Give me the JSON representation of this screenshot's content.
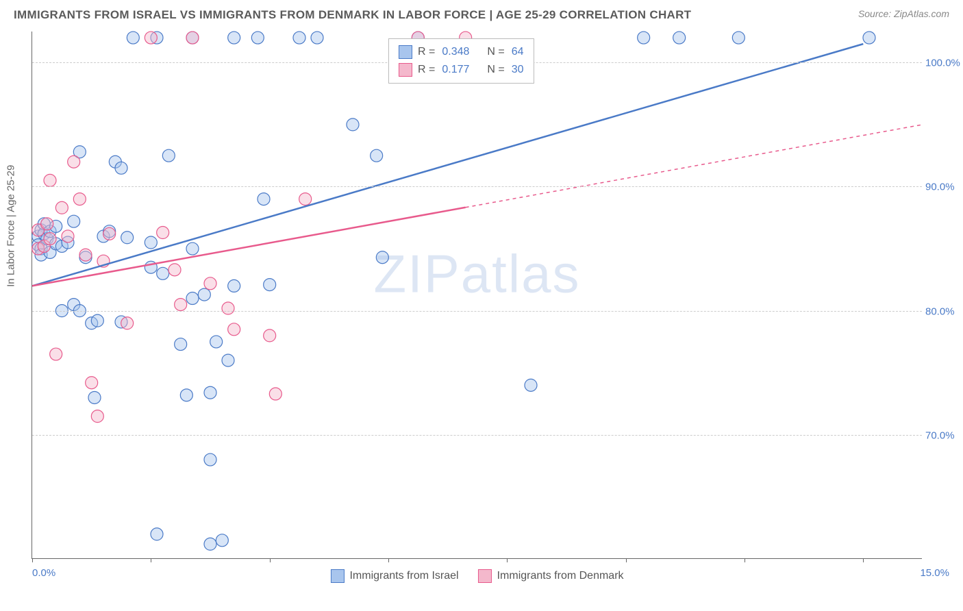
{
  "title": "IMMIGRANTS FROM ISRAEL VS IMMIGRANTS FROM DENMARK IN LABOR FORCE | AGE 25-29 CORRELATION CHART",
  "source": "Source: ZipAtlas.com",
  "watermark": {
    "text1": "ZIP",
    "text2": "atlas"
  },
  "chart": {
    "type": "scatter",
    "ylabel": "In Labor Force | Age 25-29",
    "xlim": [
      0,
      15
    ],
    "ylim": [
      60,
      102.5
    ],
    "yticks": [
      {
        "v": 70,
        "label": "70.0%"
      },
      {
        "v": 80,
        "label": "80.0%"
      },
      {
        "v": 90,
        "label": "90.0%"
      },
      {
        "v": 100,
        "label": "100.0%"
      }
    ],
    "xticks_labels": {
      "left": "0.0%",
      "right": "15.0%"
    },
    "xtick_marks": [
      0,
      2,
      4,
      6,
      8,
      10,
      12,
      14
    ],
    "grid_color": "#cccccc",
    "axis_color": "#666666",
    "background_color": "#ffffff",
    "point_radius": 9,
    "series": [
      {
        "name": "Immigrants from Israel",
        "color_stroke": "#4a7ac7",
        "color_fill": "#a8c5ed",
        "R": "0.348",
        "N": "64",
        "trend": {
          "x1": 0,
          "y1": 82,
          "x2": 14,
          "y2": 101.5,
          "dashed_from_x": null
        },
        "points": [
          [
            0.1,
            86
          ],
          [
            0.1,
            85.3
          ],
          [
            0.15,
            86.5
          ],
          [
            0.15,
            85
          ],
          [
            0.15,
            84.5
          ],
          [
            0.2,
            86.2
          ],
          [
            0.2,
            87
          ],
          [
            0.25,
            85.8
          ],
          [
            0.3,
            84.7
          ],
          [
            0.3,
            86.4
          ],
          [
            0.4,
            85.4
          ],
          [
            0.4,
            86.8
          ],
          [
            0.5,
            85.2
          ],
          [
            0.5,
            80
          ],
          [
            0.6,
            85.5
          ],
          [
            0.7,
            87.2
          ],
          [
            0.7,
            80.5
          ],
          [
            0.8,
            80
          ],
          [
            0.8,
            92.8
          ],
          [
            0.9,
            84.3
          ],
          [
            1.0,
            79
          ],
          [
            1.05,
            73
          ],
          [
            1.1,
            79.2
          ],
          [
            1.2,
            86
          ],
          [
            1.3,
            86.4
          ],
          [
            1.4,
            92
          ],
          [
            1.5,
            91.5
          ],
          [
            1.5,
            79.1
          ],
          [
            1.6,
            85.9
          ],
          [
            1.7,
            102
          ],
          [
            2.0,
            83.5
          ],
          [
            2.0,
            85.5
          ],
          [
            2.1,
            62
          ],
          [
            2.1,
            102
          ],
          [
            2.2,
            83
          ],
          [
            2.3,
            92.5
          ],
          [
            2.5,
            77.3
          ],
          [
            2.6,
            73.2
          ],
          [
            2.7,
            81
          ],
          [
            2.7,
            85
          ],
          [
            2.7,
            102
          ],
          [
            2.9,
            81.3
          ],
          [
            3.0,
            68
          ],
          [
            3.0,
            61.2
          ],
          [
            3.0,
            73.4
          ],
          [
            3.1,
            77.5
          ],
          [
            3.2,
            61.5
          ],
          [
            3.3,
            76
          ],
          [
            3.4,
            82
          ],
          [
            3.4,
            102
          ],
          [
            3.8,
            102
          ],
          [
            3.9,
            89
          ],
          [
            4.0,
            82.1
          ],
          [
            4.5,
            102
          ],
          [
            4.8,
            102
          ],
          [
            5.4,
            95
          ],
          [
            5.8,
            92.5
          ],
          [
            5.9,
            84.3
          ],
          [
            6.5,
            102
          ],
          [
            8.4,
            74
          ],
          [
            10.3,
            102
          ],
          [
            10.9,
            102
          ],
          [
            11.9,
            102
          ],
          [
            14.1,
            102
          ]
        ]
      },
      {
        "name": "Immigrants from Denmark",
        "color_stroke": "#e85a8c",
        "color_fill": "#f4b8cc",
        "R": "0.177",
        "N": "30",
        "trend": {
          "x1": 0,
          "y1": 82,
          "x2": 15,
          "y2": 95,
          "dashed_from_x": 7.3
        },
        "points": [
          [
            0.1,
            86.5
          ],
          [
            0.1,
            85
          ],
          [
            0.2,
            85.2
          ],
          [
            0.25,
            87
          ],
          [
            0.3,
            90.5
          ],
          [
            0.3,
            85.8
          ],
          [
            0.4,
            76.5
          ],
          [
            0.5,
            88.3
          ],
          [
            0.6,
            86
          ],
          [
            0.7,
            92
          ],
          [
            0.8,
            89
          ],
          [
            0.9,
            84.5
          ],
          [
            1.0,
            74.2
          ],
          [
            1.1,
            71.5
          ],
          [
            1.2,
            84
          ],
          [
            1.3,
            86.2
          ],
          [
            1.6,
            79
          ],
          [
            2.0,
            102
          ],
          [
            2.2,
            86.3
          ],
          [
            2.4,
            83.3
          ],
          [
            2.5,
            80.5
          ],
          [
            2.7,
            102
          ],
          [
            3.0,
            82.2
          ],
          [
            3.3,
            80.2
          ],
          [
            3.4,
            78.5
          ],
          [
            4.0,
            78
          ],
          [
            4.1,
            73.3
          ],
          [
            4.6,
            89
          ],
          [
            6.5,
            102
          ],
          [
            7.3,
            102
          ]
        ]
      }
    ]
  },
  "legend_bottom": [
    {
      "label": "Immigrants from Israel",
      "stroke": "#4a7ac7",
      "fill": "#a8c5ed"
    },
    {
      "label": "Immigrants from Denmark",
      "stroke": "#e85a8c",
      "fill": "#f4b8cc"
    }
  ]
}
